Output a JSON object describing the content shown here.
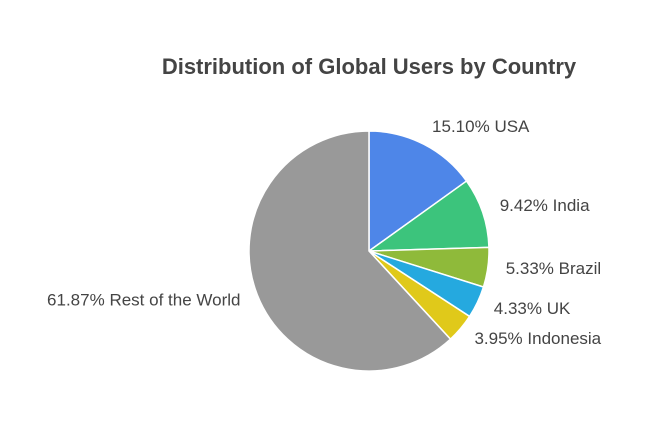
{
  "chart_data": {
    "type": "pie",
    "title": "Distribution of Global Users by Country",
    "categories": [
      "USA",
      "India",
      "Brazil",
      "UK",
      "Indonesia",
      "Rest of the World"
    ],
    "values": [
      15.1,
      9.42,
      5.33,
      4.33,
      3.95,
      61.87
    ],
    "value_labels": [
      "15.10%",
      "9.42%",
      "5.33%",
      "4.33%",
      "3.95%",
      "61.87%"
    ],
    "colors": [
      "#4e86e8",
      "#3cc47c",
      "#8fba3a",
      "#25a9df",
      "#e0c91a",
      "#999999"
    ]
  }
}
